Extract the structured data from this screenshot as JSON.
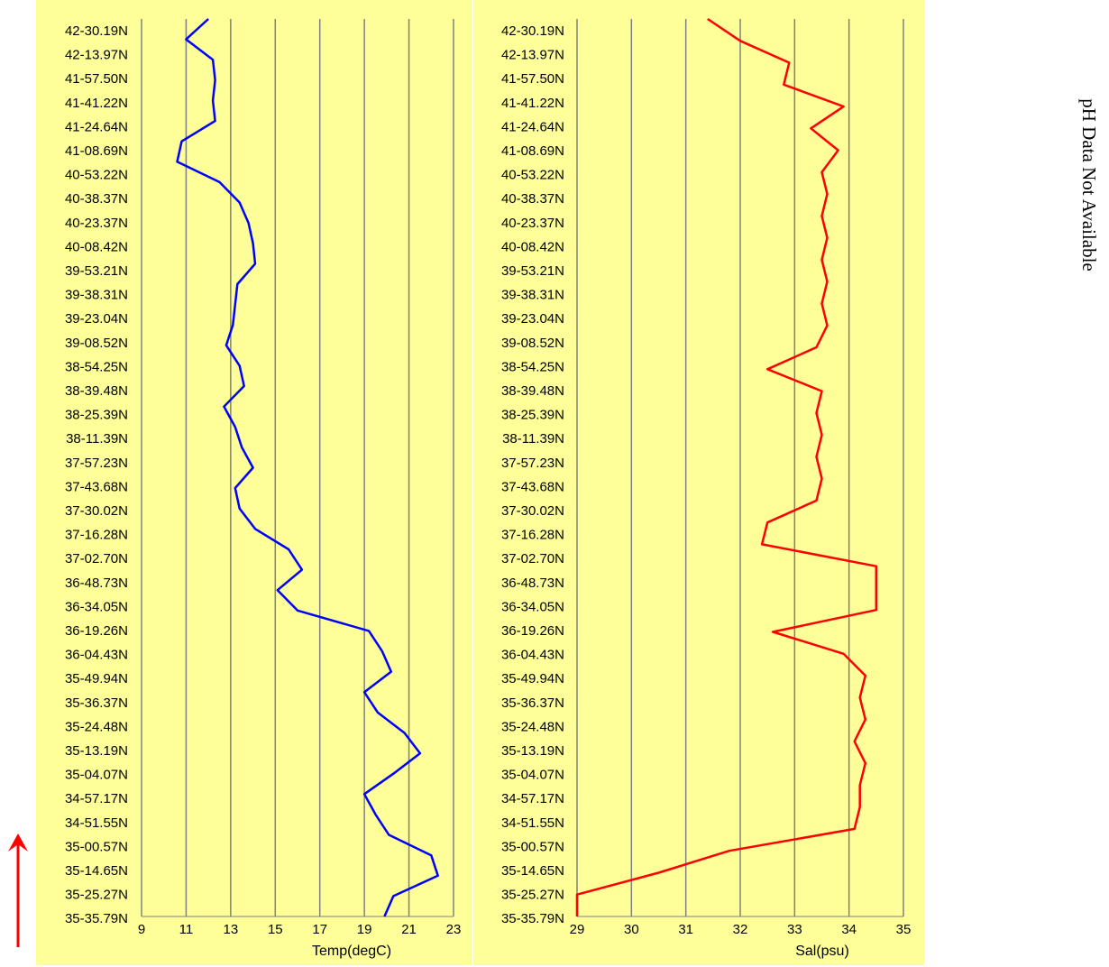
{
  "side_note": "pH Data Not Available",
  "chart_data": [
    {
      "type": "line",
      "xlabel": "Temp(degC)",
      "ylabel": "",
      "xlim": [
        9,
        23
      ],
      "x_ticks": [
        "9",
        "11",
        "13",
        "15",
        "17",
        "19",
        "21",
        "23"
      ],
      "gridlines": "vertical",
      "background": "#ffff99",
      "series": [
        {
          "color": "#0000ff",
          "values": [
            12.0,
            11.0,
            12.2,
            12.3,
            12.2,
            12.3,
            10.8,
            10.6,
            12.5,
            13.4,
            13.8,
            14.0,
            14.1,
            13.3,
            13.2,
            13.1,
            12.8,
            13.4,
            13.6,
            12.7,
            13.2,
            13.5,
            14.0,
            13.2,
            13.4,
            14.1,
            15.6,
            16.2,
            15.1,
            16.0,
            19.2,
            19.8,
            20.2,
            19.0,
            19.6,
            20.8,
            21.5,
            20.3,
            19.0,
            19.5,
            20.1,
            22.0,
            22.3,
            20.3,
            19.9
          ]
        }
      ]
    },
    {
      "type": "line",
      "xlabel": "Sal(psu)",
      "ylabel": "",
      "xlim": [
        29,
        35
      ],
      "x_ticks": [
        "29",
        "30",
        "31",
        "32",
        "33",
        "34",
        "35"
      ],
      "gridlines": "vertical",
      "background": "#ffff99",
      "series": [
        {
          "color": "#ff0000",
          "values": [
            31.4,
            32.0,
            32.9,
            32.8,
            33.9,
            33.3,
            33.8,
            33.5,
            33.6,
            33.5,
            33.6,
            33.5,
            33.6,
            33.5,
            33.6,
            33.4,
            32.5,
            33.5,
            33.4,
            33.5,
            33.4,
            33.5,
            33.4,
            32.5,
            32.4,
            34.5,
            34.5,
            34.5,
            32.6,
            33.9,
            34.3,
            34.2,
            34.3,
            34.1,
            34.3,
            34.2,
            34.2,
            34.1,
            31.8,
            30.5,
            29.0,
            29.0
          ]
        }
      ]
    }
  ],
  "lat_labels": [
    "42-30.19N",
    "42-13.97N",
    "41-57.50N",
    "41-41.22N",
    "41-24.64N",
    "41-08.69N",
    "40-53.22N",
    "40-38.37N",
    "40-23.37N",
    "40-08.42N",
    "39-53.21N",
    "39-38.31N",
    "39-23.04N",
    "39-08.52N",
    "38-54.25N",
    "38-39.48N",
    "38-25.39N",
    "38-11.39N",
    "37-57.23N",
    "37-43.68N",
    "37-30.02N",
    "37-16.28N",
    "37-02.70N",
    "36-48.73N",
    "36-34.05N",
    "36-19.26N",
    "36-04.43N",
    "35-49.94N",
    "35-36.37N",
    "35-24.48N",
    "35-13.19N",
    "35-04.07N",
    "34-57.17N",
    "34-51.55N",
    "35-00.57N",
    "35-14.65N",
    "35-25.27N",
    "35-35.79N"
  ]
}
